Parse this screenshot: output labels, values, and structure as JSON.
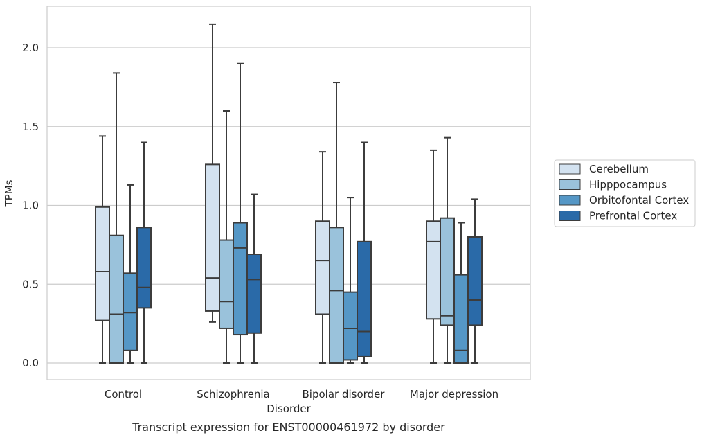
{
  "chart_data": {
    "type": "box",
    "title": "",
    "caption": "Transcript expression for ENST00000461972 by disorder",
    "xlabel": "Disorder",
    "ylabel": "TPMs",
    "ylim": [
      -0.1,
      2.27
    ],
    "yticks": [
      0.0,
      0.5,
      1.0,
      1.5,
      2.0
    ],
    "ytick_labels": [
      "0.0",
      "0.5",
      "1.0",
      "1.5",
      "2.0"
    ],
    "grid": "horizontal",
    "legend_position": "right",
    "categories": [
      "Control",
      "Schizophrenia",
      "Bipolar disorder",
      "Major depression"
    ],
    "series": [
      {
        "name": "Cerebellum",
        "color": "#d3e2f0",
        "boxes": [
          {
            "min": 0.0,
            "q1": 0.27,
            "median": 0.58,
            "q3": 0.99,
            "max": 1.44
          },
          {
            "min": 0.26,
            "q1": 0.33,
            "median": 0.54,
            "q3": 1.26,
            "max": 2.15
          },
          {
            "min": 0.0,
            "q1": 0.31,
            "median": 0.65,
            "q3": 0.9,
            "max": 1.34
          },
          {
            "min": 0.0,
            "q1": 0.28,
            "median": 0.77,
            "q3": 0.9,
            "max": 1.35
          }
        ]
      },
      {
        "name": "Hipppocampus",
        "color": "#9ac2db",
        "boxes": [
          {
            "min": 0.0,
            "q1": 0.0,
            "median": 0.31,
            "q3": 0.81,
            "max": 1.84
          },
          {
            "min": 0.0,
            "q1": 0.22,
            "median": 0.39,
            "q3": 0.78,
            "max": 1.6
          },
          {
            "min": 0.0,
            "q1": 0.0,
            "median": 0.46,
            "q3": 0.86,
            "max": 1.78
          },
          {
            "min": 0.0,
            "q1": 0.24,
            "median": 0.3,
            "q3": 0.92,
            "max": 1.43
          }
        ]
      },
      {
        "name": "Orbitofontal Cortex",
        "color": "#5597c6",
        "boxes": [
          {
            "min": 0.0,
            "q1": 0.08,
            "median": 0.32,
            "q3": 0.57,
            "max": 1.13
          },
          {
            "min": 0.0,
            "q1": 0.18,
            "median": 0.73,
            "q3": 0.89,
            "max": 1.9
          },
          {
            "min": 0.0,
            "q1": 0.02,
            "median": 0.22,
            "q3": 0.45,
            "max": 1.05
          },
          {
            "min": 0.0,
            "q1": 0.0,
            "median": 0.08,
            "q3": 0.56,
            "max": 0.89
          }
        ]
      },
      {
        "name": "Prefrontal Cortex",
        "color": "#2a6aa8",
        "boxes": [
          {
            "min": 0.0,
            "q1": 0.35,
            "median": 0.48,
            "q3": 0.86,
            "max": 1.4
          },
          {
            "min": 0.0,
            "q1": 0.19,
            "median": 0.53,
            "q3": 0.69,
            "max": 1.07
          },
          {
            "min": 0.0,
            "q1": 0.04,
            "median": 0.2,
            "q3": 0.77,
            "max": 1.4
          },
          {
            "min": 0.0,
            "q1": 0.24,
            "median": 0.4,
            "q3": 0.8,
            "max": 1.04
          }
        ]
      }
    ]
  }
}
